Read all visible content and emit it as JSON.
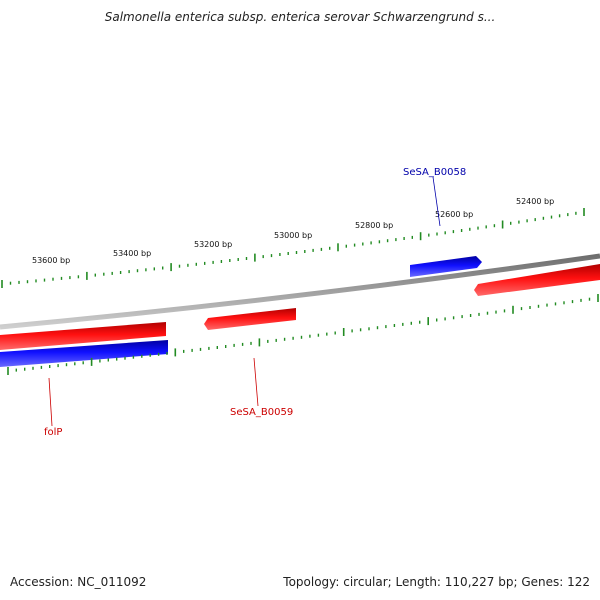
{
  "title": "Salmonella enterica subsp. enterica serovar Schwarzengrund s...",
  "footer": {
    "accession": "Accession: NC_011092",
    "summary": "Topology: circular; Length: 110,227 bp; Genes: 122"
  },
  "colors": {
    "forward_gene": "#ff0000",
    "reverse_gene": "#0000ff",
    "ticks": "#228b22",
    "backbone": "#888888"
  },
  "ruler": {
    "labels": [
      "53600 bp",
      "53400 bp",
      "53200 bp",
      "53000 bp",
      "52800 bp",
      "52600 bp",
      "52400 bp"
    ]
  },
  "genes": [
    {
      "label": "SeSA_B0058",
      "color": "#0000aa"
    },
    {
      "label": "SeSA_B0059",
      "color": "#cc0000"
    },
    {
      "label": "folP",
      "color": "#cc0000"
    }
  ]
}
